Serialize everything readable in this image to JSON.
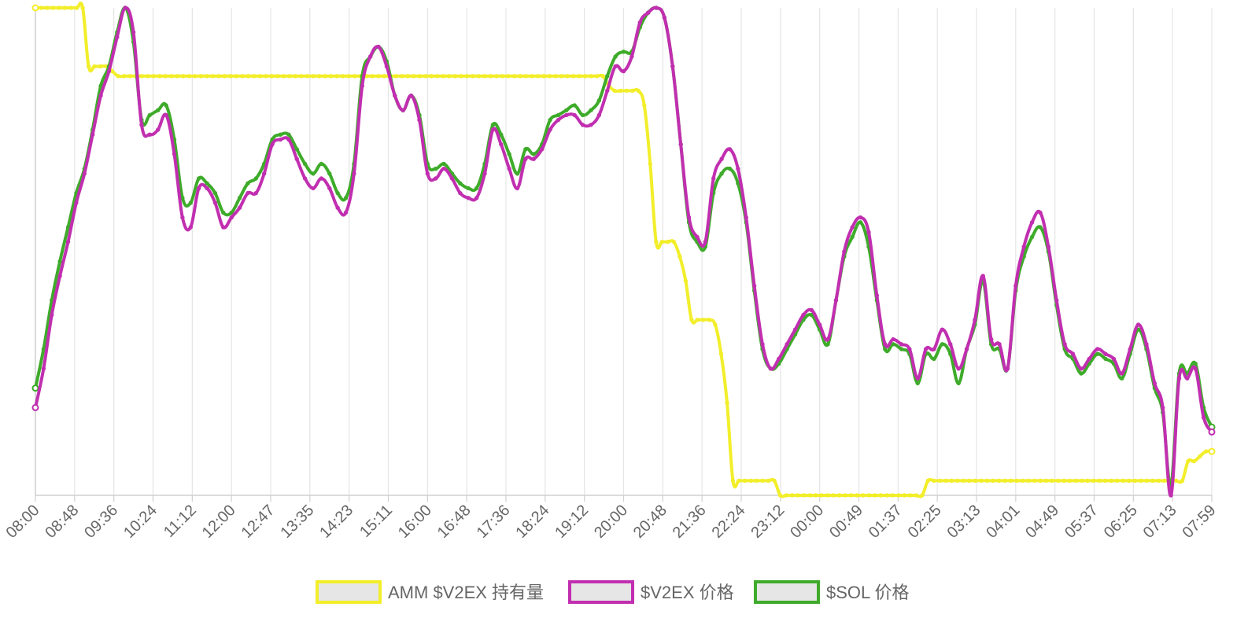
{
  "chart_data": {
    "type": "line",
    "x_labels": [
      "08:00",
      "08:48",
      "09:36",
      "10:24",
      "11:12",
      "12:00",
      "12:47",
      "13:35",
      "14:23",
      "15:11",
      "16:00",
      "16:48",
      "17:36",
      "18:24",
      "19:12",
      "20:00",
      "20:48",
      "21:36",
      "22:24",
      "23:12",
      "00:00",
      "00:49",
      "01:37",
      "02:25",
      "03:13",
      "04:01",
      "04:49",
      "05:37",
      "06:25",
      "07:13",
      "07:59"
    ],
    "y_axis_labels_visible": false,
    "grid": "vertical",
    "legend_position": "bottom",
    "series": [
      {
        "name": "AMM $V2EX 持有量",
        "color": "#f2ee2a",
        "values": [
          100,
          100,
          100,
          100,
          100,
          100,
          100,
          100,
          100,
          88,
          88,
          88,
          88,
          87,
          86,
          86,
          86,
          86,
          86,
          86,
          86,
          86,
          86,
          86,
          86,
          86,
          86,
          86,
          86,
          86,
          86,
          86,
          86,
          86,
          86,
          86,
          86,
          86,
          86,
          86,
          86,
          86,
          86,
          86,
          86,
          86,
          86,
          86,
          86,
          86,
          86,
          86,
          86,
          86,
          86,
          86,
          86,
          86,
          86,
          86,
          86,
          86,
          86,
          86,
          86,
          86,
          86,
          86,
          86,
          86,
          86,
          86,
          86,
          86,
          86,
          86,
          86,
          86,
          86,
          86,
          86,
          86,
          86,
          86,
          86,
          86,
          86,
          86,
          86,
          86,
          86,
          86,
          86,
          86,
          86,
          86,
          86,
          84,
          83,
          83,
          83,
          83,
          83,
          80,
          68,
          52,
          52,
          52,
          52,
          49,
          44,
          36,
          36,
          36,
          36,
          35,
          29,
          19,
          3,
          3,
          3,
          3,
          3,
          3,
          3,
          3,
          0,
          0,
          0,
          0,
          0,
          0,
          0,
          0,
          0,
          0,
          0,
          0,
          0,
          0,
          0,
          0,
          0,
          0,
          0,
          0,
          0,
          0,
          0,
          0,
          0,
          3,
          3,
          3,
          3,
          3,
          3,
          3,
          3,
          3,
          3,
          3,
          3,
          3,
          3,
          3,
          3,
          3,
          3,
          3,
          3,
          3,
          3,
          3,
          3,
          3,
          3,
          3,
          3,
          3,
          3,
          3,
          3,
          3,
          3,
          3,
          3,
          3,
          3,
          3,
          3,
          3,
          3,
          3,
          3,
          7,
          7,
          8,
          9,
          9
        ]
      },
      {
        "name": "$V2EX 价格",
        "color": "#c12fb0",
        "values": [
          18,
          26,
          37,
          45,
          52,
          60,
          66,
          74,
          82,
          87,
          94,
          100,
          95,
          76,
          74,
          75,
          78,
          70,
          57,
          55,
          63,
          63,
          60,
          55,
          57,
          59,
          62,
          62,
          66,
          72,
          73,
          73,
          69,
          65,
          63,
          65,
          63,
          59,
          58,
          66,
          84,
          90,
          92,
          88,
          82,
          79,
          82,
          77,
          66,
          65,
          67,
          65,
          62,
          61,
          61,
          66,
          75,
          72,
          67,
          63,
          69,
          69,
          71,
          75,
          77,
          78,
          78,
          76,
          76,
          78,
          83,
          88,
          87,
          90,
          97,
          99,
          100,
          98,
          88,
          72,
          57,
          53,
          52,
          65,
          69,
          71,
          67,
          57,
          43,
          31,
          26,
          28,
          31,
          34,
          37,
          38,
          35,
          32,
          40,
          50,
          55,
          57,
          54,
          41,
          31,
          32,
          31,
          30,
          24,
          30,
          30,
          34,
          31,
          26,
          30,
          36,
          45,
          32,
          31,
          26,
          43,
          51,
          56,
          58,
          51,
          40,
          31,
          29,
          26,
          28,
          30,
          29,
          28,
          25,
          30,
          35,
          31,
          23,
          18,
          0,
          24,
          24,
          26,
          16,
          13
        ]
      },
      {
        "name": "$SOL 价格",
        "color": "#3eab2a",
        "values": [
          22,
          30,
          40,
          48,
          55,
          62,
          67,
          75,
          84,
          88,
          95,
          100,
          93,
          77,
          78,
          79,
          80,
          73,
          61,
          60,
          65,
          64,
          62,
          58,
          58,
          61,
          64,
          65,
          68,
          73,
          74,
          74,
          71,
          68,
          66,
          68,
          66,
          62,
          61,
          68,
          86,
          90,
          92,
          89,
          82,
          79,
          82,
          78,
          68,
          67,
          68,
          66,
          64,
          63,
          63,
          68,
          76,
          74,
          70,
          66,
          71,
          70,
          72,
          77,
          78,
          79,
          80,
          78,
          79,
          81,
          86,
          90,
          91,
          91,
          96,
          99,
          100,
          98,
          88,
          72,
          56,
          52,
          51,
          62,
          66,
          67,
          64,
          56,
          42,
          30,
          26,
          27,
          30,
          33,
          36,
          37,
          34,
          31,
          40,
          49,
          53,
          56,
          51,
          40,
          30,
          31,
          30,
          29,
          23,
          29,
          28,
          31,
          29,
          23,
          30,
          35,
          44,
          31,
          30,
          26,
          42,
          49,
          53,
          55,
          50,
          39,
          30,
          28,
          25,
          27,
          29,
          28,
          27,
          24,
          29,
          34,
          30,
          22,
          17,
          2,
          25,
          25,
          27,
          18,
          14
        ]
      }
    ]
  }
}
